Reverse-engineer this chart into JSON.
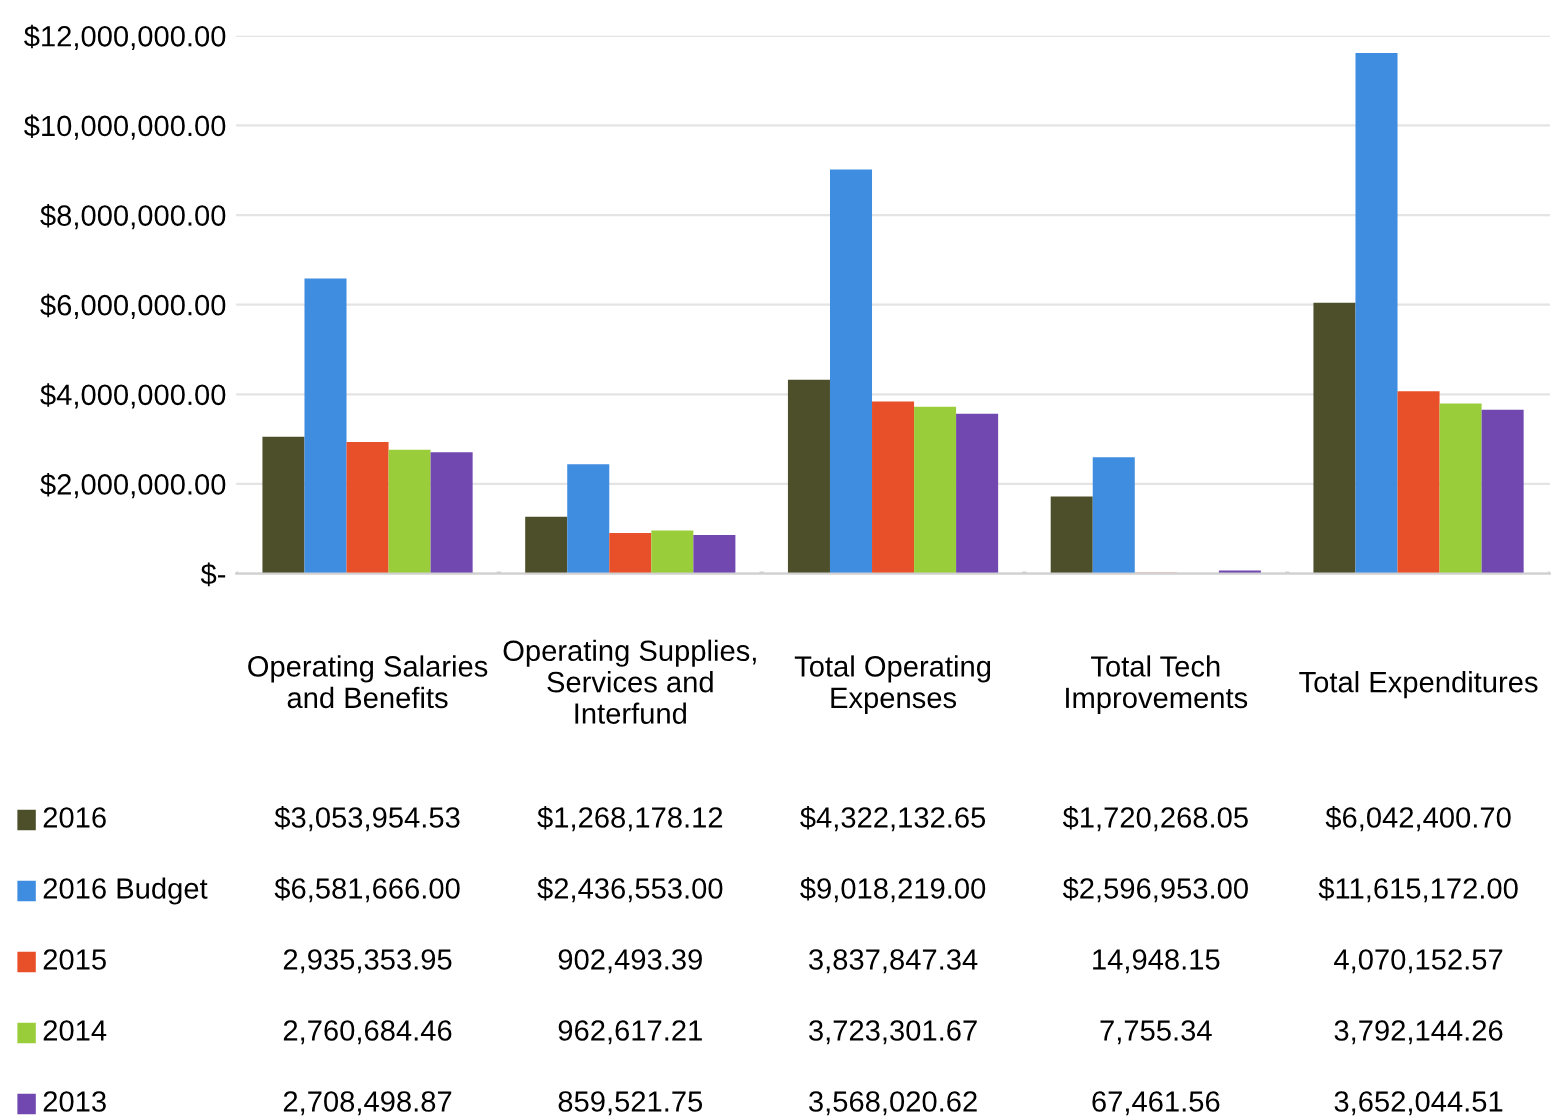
{
  "chart_data": {
    "type": "bar",
    "categories": [
      "Operating Salaries\nand Benefits",
      "Operating Supplies,\nServices and\nInterfund",
      "Total Operating\nExpenses",
      "Total Tech\nImprovements",
      "Total Expenditures"
    ],
    "series": [
      {
        "name": "2016",
        "color": "#4d4f2a",
        "values": [
          3053954.53,
          1268178.12,
          4322132.65,
          1720268.05,
          6042400.7
        ],
        "value_labels": [
          "$3,053,954.53",
          "$1,268,178.12",
          "$4,322,132.65",
          "$1,720,268.05",
          "$6,042,400.70"
        ]
      },
      {
        "name": "2016 Budget",
        "color": "#3e8de0",
        "values": [
          6581666.0,
          2436553.0,
          9018219.0,
          2596953.0,
          11615172.0
        ],
        "value_labels": [
          "$6,581,666.00",
          "$2,436,553.00",
          "$9,018,219.00",
          "$2,596,953.00",
          "$11,615,172.00"
        ]
      },
      {
        "name": "2015",
        "color": "#e8502a",
        "values": [
          2935353.95,
          902493.39,
          3837847.34,
          14948.15,
          4070152.57
        ],
        "value_labels": [
          "2,935,353.95",
          "902,493.39",
          "3,837,847.34",
          "14,948.15",
          "4,070,152.57"
        ]
      },
      {
        "name": "2014",
        "color": "#9acd3a",
        "values": [
          2760684.46,
          962617.21,
          3723301.67,
          7755.34,
          3792144.26
        ],
        "value_labels": [
          "2,760,684.46",
          "962,617.21",
          "3,723,301.67",
          "7,755.34",
          "3,792,144.26"
        ]
      },
      {
        "name": "2013",
        "color": "#7048b0",
        "values": [
          2708498.87,
          859521.75,
          3568020.62,
          67461.56,
          3652044.51
        ],
        "value_labels": [
          "2,708,498.87",
          "859,521.75",
          "3,568,020.62",
          "67,461.56",
          "3,652,044.51"
        ]
      }
    ],
    "ylim": [
      0,
      12000000
    ],
    "yticks": [
      {
        "value": 0,
        "label": "$-"
      },
      {
        "value": 2000000,
        "label": "$2,000,000.00"
      },
      {
        "value": 4000000,
        "label": "$4,000,000.00"
      },
      {
        "value": 6000000,
        "label": "$6,000,000.00"
      },
      {
        "value": 8000000,
        "label": "$8,000,000.00"
      },
      {
        "value": 10000000,
        "label": "$10,000,000.00"
      },
      {
        "value": 12000000,
        "label": "$12,000,000.00"
      }
    ],
    "grid": "y",
    "legend": "bottom left"
  }
}
